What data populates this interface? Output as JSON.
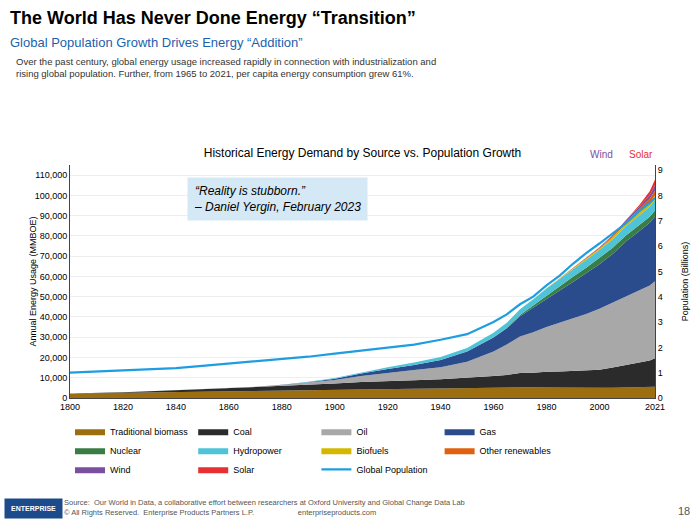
{
  "chart_data": {
    "type": "stacked_area",
    "page_title": "The World Has Never Done Energy “Transition”",
    "subtitle": "Global Population Growth Drives Energy “Addition”",
    "subtitle_color": "#1C5FAD",
    "description": "Over the past century, global energy usage increased rapidly in connection with industrialization and\nrising global population. Further, from 1965 to 2021, per capita energy consumption grew 61%.",
    "title": "Historical Energy Demand by Source vs. Population Growth",
    "ylabel": "Annual Energy Usage (MMBOE)",
    "y2label": "Population (Billions)",
    "quote": "“Reality is stubborn.”\n– Daniel Yergin, February 2023",
    "quote_color": "#D4E8F5",
    "annotations": [
      {
        "text": "Solar",
        "color": "#E83030"
      },
      {
        "text": "Wind",
        "color": "#7B4FA0"
      }
    ],
    "source": "Source:  Our World in Data, a collaborative effort between researchers at Oxford University and Global Change Data Lab\n© All Rights Reserved.  Enterprise Products Partners L.P.                     enterpriseproducts.com",
    "page_number": "18",
    "logo_text": "ENTERPRISE",
    "logo_color": "#1C4B8C",
    "stacked": true,
    "grid": true,
    "legend": "bottom",
    "x": [
      1800,
      1810,
      1820,
      1830,
      1840,
      1850,
      1860,
      1870,
      1880,
      1890,
      1900,
      1910,
      1920,
      1930,
      1940,
      1950,
      1960,
      1965,
      1970,
      1975,
      1980,
      1985,
      1990,
      1995,
      2000,
      2005,
      2010,
      2015,
      2019,
      2021
    ],
    "xlim": [
      1800,
      2021
    ],
    "xticks": [
      1800,
      1820,
      1840,
      1860,
      1880,
      1900,
      1920,
      1940,
      1960,
      1980,
      2000,
      2021
    ],
    "ylim": [
      0,
      115000
    ],
    "yticks": [
      0,
      {
        "value": 10000,
        "label": "10,000"
      },
      {
        "value": 20000,
        "label": "20,000"
      },
      {
        "value": 30000,
        "label": "30,000"
      },
      {
        "value": 40000,
        "label": "40,000"
      },
      {
        "value": 50000,
        "label": "50,000"
      },
      {
        "value": 60000,
        "label": "60,000"
      },
      {
        "value": 70000,
        "label": "70,000"
      },
      {
        "value": 80000,
        "label": "80,000"
      },
      {
        "value": 90000,
        "label": "90,000"
      },
      {
        "value": 100000,
        "label": "100,000"
      },
      {
        "value": 110000,
        "label": "110,000"
      }
    ],
    "y2lim": [
      0,
      9.2
    ],
    "y2ticks": [
      0,
      1,
      2,
      3,
      4,
      5,
      6,
      7,
      8,
      9
    ],
    "series": [
      {
        "name": "Traditional biomass",
        "color": "#9C6E10",
        "values": [
          2200,
          2400,
          2600,
          2900,
          3100,
          3300,
          3500,
          3600,
          3800,
          4000,
          4200,
          4400,
          4500,
          4600,
          4700,
          4900,
          5100,
          5200,
          5400,
          5300,
          5200,
          5100,
          5100,
          5000,
          5000,
          5100,
          5200,
          5300,
          5500,
          5600
        ]
      },
      {
        "name": "Coal",
        "color": "#2B2B2B",
        "values": [
          10,
          50,
          200,
          400,
          700,
          1000,
          1400,
          1800,
          2200,
          2500,
          2900,
          3500,
          4000,
          4200,
          4500,
          5000,
          5800,
          6200,
          7000,
          7200,
          7800,
          8000,
          8200,
          8500,
          9000,
          10000,
          11000,
          12000,
          13000,
          14000
        ]
      },
      {
        "name": "Oil",
        "color": "#A8A8A8",
        "values": [
          0,
          0,
          0,
          0,
          0,
          0,
          0,
          100,
          400,
          1000,
          1800,
          3000,
          4000,
          5000,
          6000,
          8000,
          12000,
          15000,
          18000,
          20000,
          22000,
          24000,
          26000,
          28000,
          30000,
          32000,
          34000,
          36000,
          37000,
          38000
        ]
      },
      {
        "name": "Gas",
        "color": "#2B4C8C",
        "values": [
          0,
          0,
          0,
          0,
          0,
          0,
          0,
          0,
          100,
          300,
          600,
          1200,
          1800,
          2500,
          3500,
          5000,
          7000,
          8000,
          10000,
          12000,
          14000,
          16000,
          18000,
          20000,
          22000,
          24000,
          27000,
          29000,
          31000,
          32000
        ]
      },
      {
        "name": "Nuclear",
        "color": "#3A7D44",
        "values": [
          0,
          0,
          0,
          0,
          0,
          0,
          0,
          0,
          0,
          0,
          0,
          0,
          0,
          0,
          0,
          0,
          100,
          200,
          600,
          1200,
          1800,
          2200,
          2600,
          2800,
          3000,
          3000,
          3000,
          2900,
          2900,
          3000
        ]
      },
      {
        "name": "Hydropower",
        "color": "#4FC3D8",
        "values": [
          0,
          0,
          0,
          0,
          0,
          0,
          0,
          0,
          100,
          200,
          400,
          600,
          900,
          1200,
          1500,
          1800,
          2200,
          2500,
          2800,
          3000,
          3200,
          3400,
          3600,
          3800,
          4000,
          4300,
          4600,
          4900,
          5100,
          5300
        ]
      },
      {
        "name": "Biofuels",
        "color": "#D4B800",
        "values": [
          0,
          0,
          0,
          0,
          0,
          0,
          0,
          0,
          0,
          0,
          0,
          0,
          0,
          0,
          0,
          0,
          0,
          0,
          0,
          100,
          200,
          300,
          400,
          500,
          700,
          900,
          1200,
          1500,
          1800,
          2000
        ]
      },
      {
        "name": "Other renewables",
        "color": "#E06010",
        "values": [
          0,
          0,
          0,
          0,
          0,
          0,
          0,
          0,
          0,
          0,
          0,
          0,
          0,
          0,
          0,
          0,
          0,
          0,
          0,
          0,
          0,
          100,
          200,
          300,
          500,
          700,
          1000,
          1500,
          2000,
          2500
        ]
      },
      {
        "name": "Wind",
        "color": "#7B4FA0",
        "values": [
          0,
          0,
          0,
          0,
          0,
          0,
          0,
          0,
          0,
          0,
          0,
          0,
          0,
          0,
          0,
          0,
          0,
          0,
          0,
          0,
          0,
          0,
          0,
          100,
          200,
          400,
          700,
          1200,
          1900,
          2500
        ]
      },
      {
        "name": "Solar",
        "color": "#E83030",
        "values": [
          0,
          0,
          0,
          0,
          0,
          0,
          0,
          0,
          0,
          0,
          0,
          0,
          0,
          0,
          0,
          0,
          0,
          0,
          0,
          0,
          0,
          0,
          0,
          0,
          0,
          100,
          300,
          800,
          1800,
          3000
        ]
      },
      {
        "name": "Global Population",
        "type": "line",
        "axis": "y2",
        "color": "#1E9EE0",
        "values": [
          1.0,
          1.05,
          1.09,
          1.13,
          1.18,
          1.27,
          1.36,
          1.45,
          1.54,
          1.63,
          1.75,
          1.88,
          2.0,
          2.11,
          2.3,
          2.52,
          3.0,
          3.3,
          3.7,
          4.0,
          4.45,
          4.83,
          5.3,
          5.72,
          6.1,
          6.5,
          6.9,
          7.38,
          7.7,
          7.9
        ]
      }
    ]
  }
}
